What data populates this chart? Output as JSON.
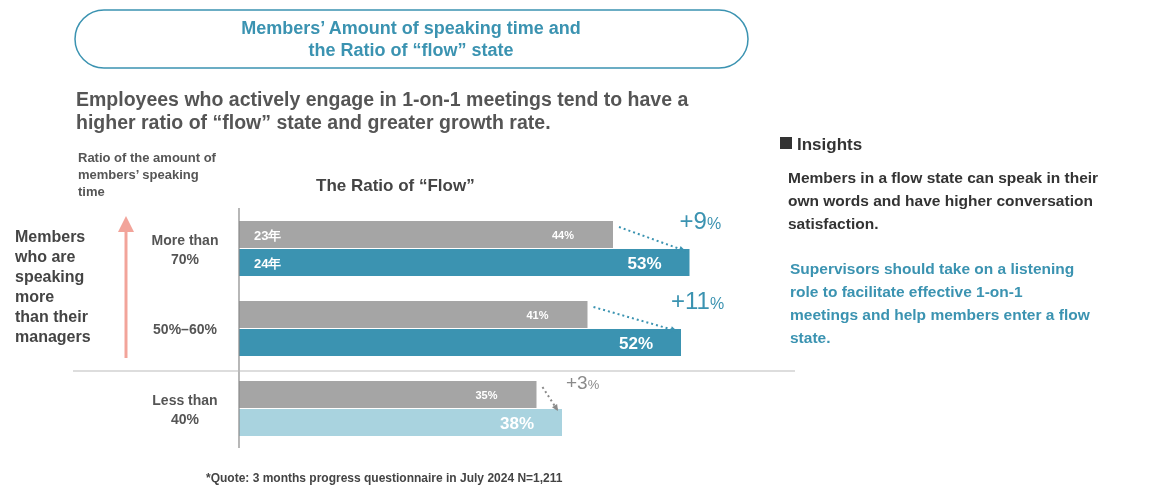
{
  "chart_data": {
    "type": "bar",
    "orientation": "horizontal",
    "title": "Members’ Amount of speaking time and\nthe Ratio of “flow” state",
    "subtitle": "Employees who actively engage in 1-on-1 meetings tend to have a\nhigher ratio of “flow” state and greater growth rate.",
    "ylabel": "Ratio of the amount of\nmembers’ speaking\ntime",
    "categories": [
      "More than\n70%",
      "50%–60%",
      "Less than\n40%"
    ],
    "series": [
      {
        "name": "23年",
        "color": "#a5a5a5",
        "values": [
          44,
          41,
          35
        ],
        "value_labels": [
          "44%",
          "41%",
          "35%"
        ]
      },
      {
        "name": "24年",
        "color": "#3b93b1",
        "colors": [
          "#3b93b1",
          "#3b93b1",
          "#a9d3df"
        ],
        "values": [
          53,
          52,
          38
        ],
        "value_labels": [
          "53%",
          "52%",
          "38%"
        ]
      }
    ],
    "annotations": [
      {
        "text": "+9%",
        "x": 53,
        "y": "More than\n70%"
      },
      {
        "text": "+11%",
        "x": 52,
        "y": "50%–60%"
      },
      {
        "text": "+3%",
        "x": 38,
        "y": "Less than\n40%"
      },
      "The Ratio of “Flow”",
      "Members\nwho are\nspeaking\nmore\nthan their\nmanagers",
      "Insights",
      "Members in a flow state can speak in their\nown words and have higher conversation\nsatisfaction.",
      "Supervisors should take on a listening\nrole to facilitate effective 1-on-1\nmeetings and help members enter a flow\nstate.",
      "*Quote: 3 months progress questionnaire in July 2024  N=1,211"
    ]
  }
}
